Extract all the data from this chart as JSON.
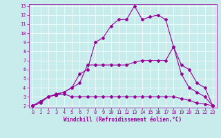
{
  "xlabel": "Windchill (Refroidissement éolien,°C)",
  "background_color": "#c8ecec",
  "line_color": "#990099",
  "grid_color": "#ffffff",
  "xlim": [
    -0.5,
    23.5
  ],
  "ylim": [
    1.8,
    13.2
  ],
  "xticks": [
    0,
    1,
    2,
    3,
    4,
    5,
    6,
    7,
    8,
    9,
    10,
    11,
    12,
    13,
    14,
    15,
    16,
    17,
    18,
    19,
    20,
    21,
    22,
    23
  ],
  "yticks": [
    2,
    3,
    4,
    5,
    6,
    7,
    8,
    9,
    10,
    11,
    12,
    13
  ],
  "line1_x": [
    0,
    1,
    2,
    3,
    4,
    5,
    6,
    7,
    8,
    9,
    10,
    11,
    12,
    13,
    14,
    15,
    16,
    17,
    18,
    19,
    20,
    21,
    22,
    23
  ],
  "line1_y": [
    2.0,
    2.5,
    3.0,
    3.2,
    3.3,
    3.0,
    3.0,
    3.0,
    3.0,
    3.0,
    3.0,
    3.0,
    3.0,
    3.0,
    3.0,
    3.0,
    3.0,
    3.0,
    3.0,
    2.8,
    2.6,
    2.3,
    2.2,
    2.0
  ],
  "line2_x": [
    0,
    1,
    2,
    3,
    4,
    5,
    6,
    7,
    8,
    9,
    10,
    11,
    12,
    13,
    14,
    15,
    16,
    17,
    18,
    19,
    20,
    21,
    22,
    23
  ],
  "line2_y": [
    2.0,
    2.3,
    3.0,
    3.3,
    3.5,
    4.0,
    4.5,
    6.5,
    6.5,
    6.5,
    6.5,
    6.5,
    6.5,
    6.8,
    7.0,
    7.0,
    7.0,
    7.0,
    8.5,
    5.5,
    4.0,
    3.5,
    3.0,
    2.0
  ],
  "line3_x": [
    0,
    1,
    2,
    3,
    4,
    5,
    6,
    7,
    8,
    9,
    10,
    11,
    12,
    13,
    14,
    15,
    16,
    17,
    18,
    19,
    20,
    21,
    22,
    23
  ],
  "line3_y": [
    2.0,
    2.5,
    3.0,
    3.2,
    3.5,
    4.0,
    5.5,
    6.0,
    9.0,
    9.5,
    10.8,
    11.5,
    11.5,
    13.0,
    11.5,
    11.8,
    12.0,
    11.5,
    8.5,
    6.5,
    6.0,
    4.5,
    4.0,
    2.0
  ],
  "tick_fontsize": 5,
  "xlabel_fontsize": 5.5,
  "marker_size": 2.0,
  "line_width": 0.8
}
